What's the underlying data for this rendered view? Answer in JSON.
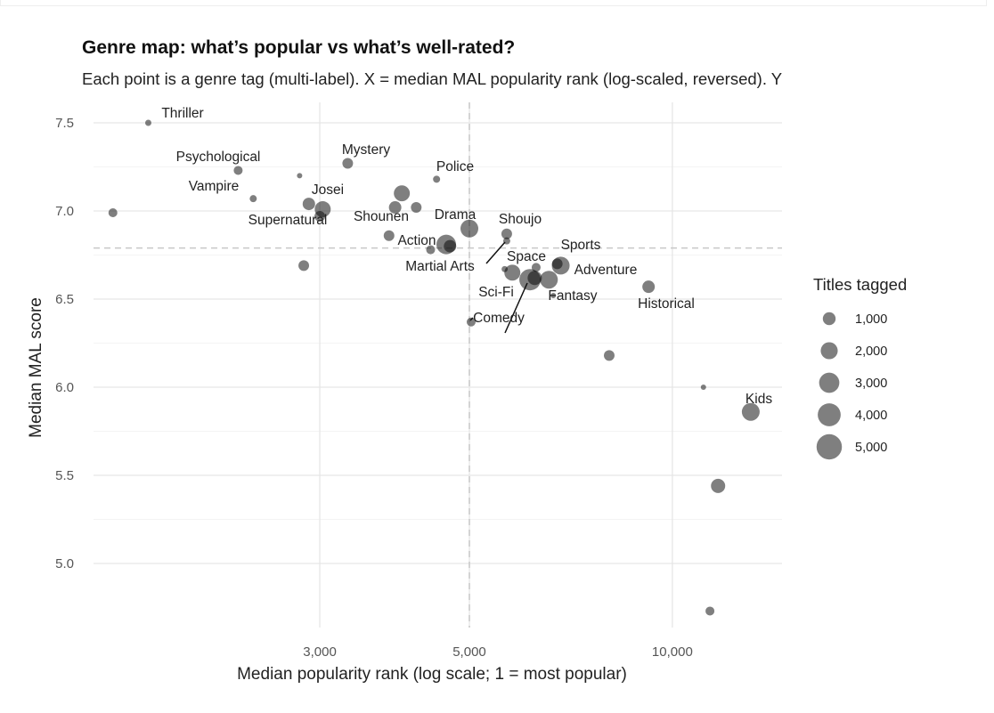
{
  "chart_data": {
    "type": "scatter",
    "title": "Genre map: what’s popular vs what’s well-rated?",
    "subtitle": "Each point is a genre tag (multi-label). X = median MAL popularity rank (log-scaled, reversed). Y",
    "xlabel": "Median popularity rank (log scale; 1 = most popular)",
    "ylabel": "Median MAL score",
    "x_scale": "log",
    "xlim": [
      1280,
      16000
    ],
    "ylim": [
      4.65,
      7.6
    ],
    "x_ticks": [
      {
        "value": 3000,
        "label": "3,000"
      },
      {
        "value": 5000,
        "label": "5,000"
      },
      {
        "value": 10000,
        "label": "10,000"
      }
    ],
    "y_ticks": [
      {
        "value": 5.0,
        "label": "5.0"
      },
      {
        "value": 5.5,
        "label": "5.5"
      },
      {
        "value": 6.0,
        "label": "6.0"
      },
      {
        "value": 6.5,
        "label": "6.5"
      },
      {
        "value": 7.0,
        "label": "7.0"
      },
      {
        "value": 7.5,
        "label": "7.5"
      }
    ],
    "grid": true,
    "reference_lines": {
      "x_median": 5000,
      "y_median": 6.79
    },
    "legend": {
      "title": "Titles tagged",
      "placement": "right",
      "entries": [
        {
          "value": 1000,
          "label": "1,000"
        },
        {
          "value": 2000,
          "label": "2,000"
        },
        {
          "value": 3000,
          "label": "3,000"
        },
        {
          "value": 4000,
          "label": "4,000"
        },
        {
          "value": 5000,
          "label": "5,000"
        }
      ]
    },
    "points": [
      {
        "genre": "",
        "x": 1480,
        "y": 6.99,
        "titles": 380
      },
      {
        "genre": "Thriller",
        "x": 1670,
        "y": 7.5,
        "titles": 120
      },
      {
        "genre": "Psychological",
        "x": 2270,
        "y": 7.23,
        "titles": 380
      },
      {
        "genre": "",
        "x": 2800,
        "y": 7.2,
        "titles": 70
      },
      {
        "genre": "Vampire",
        "x": 2390,
        "y": 7.07,
        "titles": 190
      },
      {
        "genre": "Mystery",
        "x": 3300,
        "y": 7.27,
        "titles": 620
      },
      {
        "genre": "Josei",
        "x": 2890,
        "y": 7.04,
        "titles": 930
      },
      {
        "genre": "",
        "x": 3030,
        "y": 7.01,
        "titles": 1730
      },
      {
        "genre": "Supernatural",
        "x": 3000,
        "y": 6.97,
        "titles": 620
      },
      {
        "genre": "",
        "x": 2840,
        "y": 6.69,
        "titles": 620
      },
      {
        "genre": "",
        "x": 3970,
        "y": 7.1,
        "titles": 1730
      },
      {
        "genre": "",
        "x": 3880,
        "y": 7.02,
        "titles": 930
      },
      {
        "genre": "Shounen",
        "x": 4170,
        "y": 7.02,
        "titles": 620
      },
      {
        "genre": "Police",
        "x": 4470,
        "y": 7.18,
        "titles": 190
      },
      {
        "genre": "",
        "x": 3800,
        "y": 6.86,
        "titles": 620
      },
      {
        "genre": "Action",
        "x": 4620,
        "y": 6.81,
        "titles": 2780
      },
      {
        "genre": "Martial Arts",
        "x": 4680,
        "y": 6.8,
        "titles": 930
      },
      {
        "genre": "",
        "x": 4380,
        "y": 6.78,
        "titles": 380
      },
      {
        "genre": "Drama",
        "x": 5000,
        "y": 6.9,
        "titles": 2230
      },
      {
        "genre": "Shoujo",
        "x": 5680,
        "y": 6.87,
        "titles": 620
      },
      {
        "genre": "Space",
        "x": 5680,
        "y": 6.83,
        "titles": 190
      },
      {
        "genre": "",
        "x": 5640,
        "y": 6.67,
        "titles": 120
      },
      {
        "genre": "",
        "x": 5790,
        "y": 6.65,
        "titles": 1730
      },
      {
        "genre": "",
        "x": 6280,
        "y": 6.68,
        "titles": 380
      },
      {
        "genre": "Comedy",
        "x": 6150,
        "y": 6.61,
        "titles": 3400
      },
      {
        "genre": "Sci-Fi",
        "x": 6250,
        "y": 6.62,
        "titles": 1300
      },
      {
        "genre": "",
        "x": 6560,
        "y": 6.61,
        "titles": 2230
      },
      {
        "genre": "Adventure",
        "x": 6830,
        "y": 6.69,
        "titles": 2230
      },
      {
        "genre": "Sports",
        "x": 6750,
        "y": 6.7,
        "titles": 620
      },
      {
        "genre": "Fantasy",
        "x": 6660,
        "y": 6.52,
        "titles": 70
      },
      {
        "genre": "",
        "x": 5030,
        "y": 6.37,
        "titles": 380
      },
      {
        "genre": "Historical",
        "x": 9220,
        "y": 6.57,
        "titles": 930
      },
      {
        "genre": "",
        "x": 8060,
        "y": 6.18,
        "titles": 620
      },
      {
        "genre": "",
        "x": 11120,
        "y": 6.0,
        "titles": 70
      },
      {
        "genre": "Kids",
        "x": 13070,
        "y": 5.86,
        "titles": 2230
      },
      {
        "genre": "",
        "x": 11690,
        "y": 5.44,
        "titles": 1300
      },
      {
        "genre": "",
        "x": 11370,
        "y": 4.73,
        "titles": 380
      }
    ]
  }
}
